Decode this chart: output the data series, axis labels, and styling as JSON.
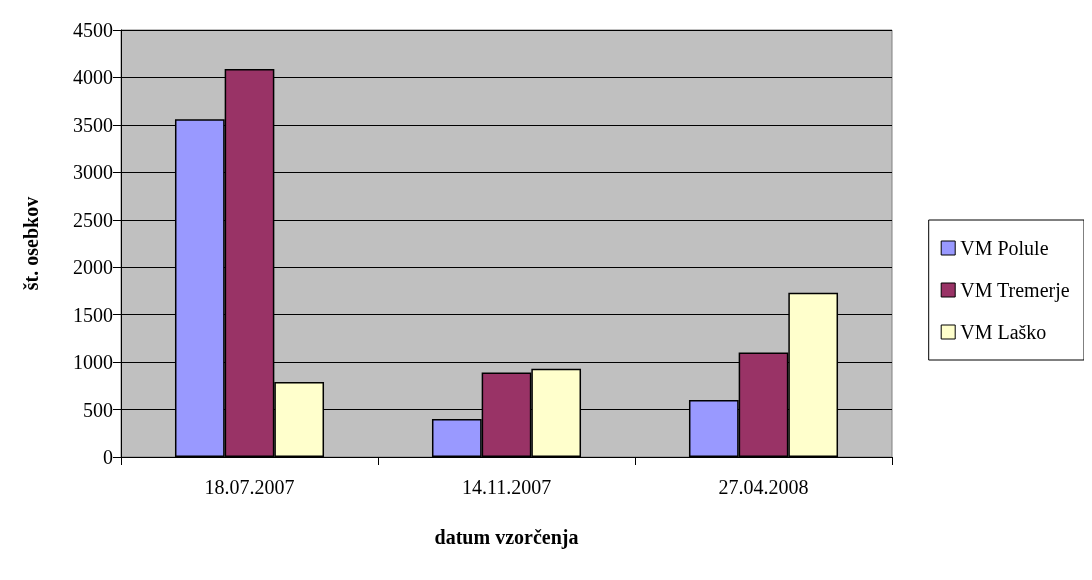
{
  "chart_data": {
    "type": "bar",
    "xlabel": "datum vzorčenja",
    "ylabel": "št. osebkov",
    "categories": [
      "18.07.2007",
      "14.11.2007",
      "27.04.2008"
    ],
    "series": [
      {
        "name": "VM Polule",
        "color": "#9999ff",
        "values": [
          3560,
          400,
          600
        ]
      },
      {
        "name": "VM Tremerje",
        "color": "#993366",
        "values": [
          4090,
          890,
          1100
        ]
      },
      {
        "name": "VM Laško",
        "color": "#ffffcc",
        "values": [
          790,
          930,
          1730
        ]
      }
    ],
    "ylim": [
      0,
      4500
    ],
    "yticks": [
      0,
      500,
      1000,
      1500,
      2000,
      2500,
      3000,
      3500,
      4000,
      4500
    ],
    "grid": "y",
    "legend": "right"
  }
}
